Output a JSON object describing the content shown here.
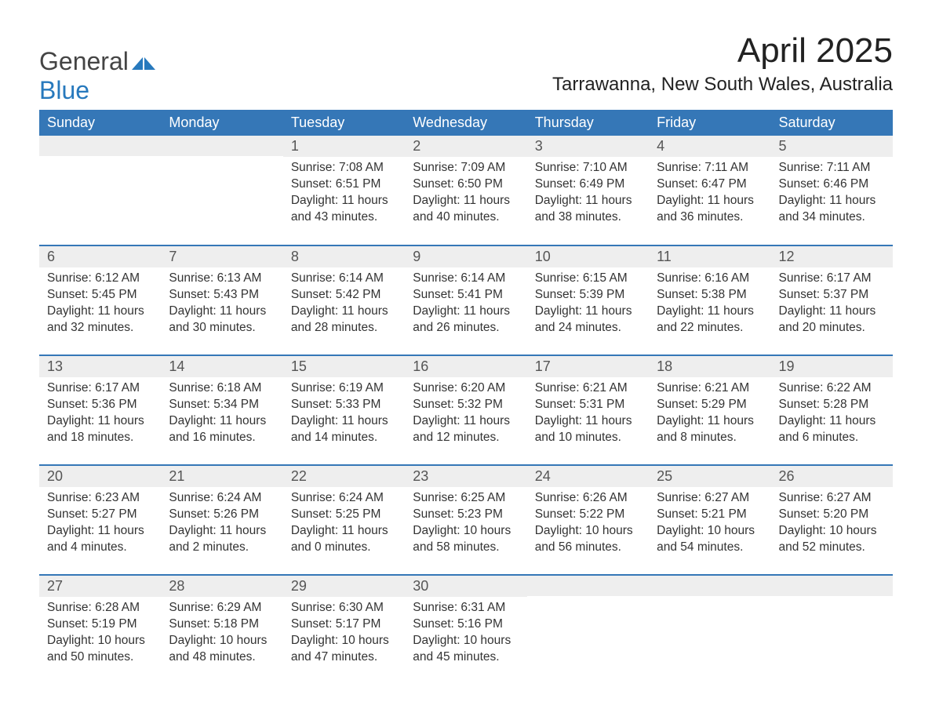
{
  "logo": {
    "text_general": "General",
    "text_blue": "Blue"
  },
  "title": "April 2025",
  "location": "Tarrawanna, New South Wales, Australia",
  "colors": {
    "header_bg": "#3577b7",
    "header_text": "#ffffff",
    "daynum_bg": "#eeeeee",
    "row_border": "#3577b7",
    "body_text": "#333333",
    "logo_blue": "#2779bd"
  },
  "fonts": {
    "title_size_pt": 33,
    "location_size_pt": 18,
    "header_size_pt": 14,
    "daynum_size_pt": 14,
    "body_size_pt": 12
  },
  "day_headers": [
    "Sunday",
    "Monday",
    "Tuesday",
    "Wednesday",
    "Thursday",
    "Friday",
    "Saturday"
  ],
  "weeks": [
    [
      null,
      null,
      {
        "n": "1",
        "sunrise": "Sunrise: 7:08 AM",
        "sunset": "Sunset: 6:51 PM",
        "daylight": "Daylight: 11 hours and 43 minutes."
      },
      {
        "n": "2",
        "sunrise": "Sunrise: 7:09 AM",
        "sunset": "Sunset: 6:50 PM",
        "daylight": "Daylight: 11 hours and 40 minutes."
      },
      {
        "n": "3",
        "sunrise": "Sunrise: 7:10 AM",
        "sunset": "Sunset: 6:49 PM",
        "daylight": "Daylight: 11 hours and 38 minutes."
      },
      {
        "n": "4",
        "sunrise": "Sunrise: 7:11 AM",
        "sunset": "Sunset: 6:47 PM",
        "daylight": "Daylight: 11 hours and 36 minutes."
      },
      {
        "n": "5",
        "sunrise": "Sunrise: 7:11 AM",
        "sunset": "Sunset: 6:46 PM",
        "daylight": "Daylight: 11 hours and 34 minutes."
      }
    ],
    [
      {
        "n": "6",
        "sunrise": "Sunrise: 6:12 AM",
        "sunset": "Sunset: 5:45 PM",
        "daylight": "Daylight: 11 hours and 32 minutes."
      },
      {
        "n": "7",
        "sunrise": "Sunrise: 6:13 AM",
        "sunset": "Sunset: 5:43 PM",
        "daylight": "Daylight: 11 hours and 30 minutes."
      },
      {
        "n": "8",
        "sunrise": "Sunrise: 6:14 AM",
        "sunset": "Sunset: 5:42 PM",
        "daylight": "Daylight: 11 hours and 28 minutes."
      },
      {
        "n": "9",
        "sunrise": "Sunrise: 6:14 AM",
        "sunset": "Sunset: 5:41 PM",
        "daylight": "Daylight: 11 hours and 26 minutes."
      },
      {
        "n": "10",
        "sunrise": "Sunrise: 6:15 AM",
        "sunset": "Sunset: 5:39 PM",
        "daylight": "Daylight: 11 hours and 24 minutes."
      },
      {
        "n": "11",
        "sunrise": "Sunrise: 6:16 AM",
        "sunset": "Sunset: 5:38 PM",
        "daylight": "Daylight: 11 hours and 22 minutes."
      },
      {
        "n": "12",
        "sunrise": "Sunrise: 6:17 AM",
        "sunset": "Sunset: 5:37 PM",
        "daylight": "Daylight: 11 hours and 20 minutes."
      }
    ],
    [
      {
        "n": "13",
        "sunrise": "Sunrise: 6:17 AM",
        "sunset": "Sunset: 5:36 PM",
        "daylight": "Daylight: 11 hours and 18 minutes."
      },
      {
        "n": "14",
        "sunrise": "Sunrise: 6:18 AM",
        "sunset": "Sunset: 5:34 PM",
        "daylight": "Daylight: 11 hours and 16 minutes."
      },
      {
        "n": "15",
        "sunrise": "Sunrise: 6:19 AM",
        "sunset": "Sunset: 5:33 PM",
        "daylight": "Daylight: 11 hours and 14 minutes."
      },
      {
        "n": "16",
        "sunrise": "Sunrise: 6:20 AM",
        "sunset": "Sunset: 5:32 PM",
        "daylight": "Daylight: 11 hours and 12 minutes."
      },
      {
        "n": "17",
        "sunrise": "Sunrise: 6:21 AM",
        "sunset": "Sunset: 5:31 PM",
        "daylight": "Daylight: 11 hours and 10 minutes."
      },
      {
        "n": "18",
        "sunrise": "Sunrise: 6:21 AM",
        "sunset": "Sunset: 5:29 PM",
        "daylight": "Daylight: 11 hours and 8 minutes."
      },
      {
        "n": "19",
        "sunrise": "Sunrise: 6:22 AM",
        "sunset": "Sunset: 5:28 PM",
        "daylight": "Daylight: 11 hours and 6 minutes."
      }
    ],
    [
      {
        "n": "20",
        "sunrise": "Sunrise: 6:23 AM",
        "sunset": "Sunset: 5:27 PM",
        "daylight": "Daylight: 11 hours and 4 minutes."
      },
      {
        "n": "21",
        "sunrise": "Sunrise: 6:24 AM",
        "sunset": "Sunset: 5:26 PM",
        "daylight": "Daylight: 11 hours and 2 minutes."
      },
      {
        "n": "22",
        "sunrise": "Sunrise: 6:24 AM",
        "sunset": "Sunset: 5:25 PM",
        "daylight": "Daylight: 11 hours and 0 minutes."
      },
      {
        "n": "23",
        "sunrise": "Sunrise: 6:25 AM",
        "sunset": "Sunset: 5:23 PM",
        "daylight": "Daylight: 10 hours and 58 minutes."
      },
      {
        "n": "24",
        "sunrise": "Sunrise: 6:26 AM",
        "sunset": "Sunset: 5:22 PM",
        "daylight": "Daylight: 10 hours and 56 minutes."
      },
      {
        "n": "25",
        "sunrise": "Sunrise: 6:27 AM",
        "sunset": "Sunset: 5:21 PM",
        "daylight": "Daylight: 10 hours and 54 minutes."
      },
      {
        "n": "26",
        "sunrise": "Sunrise: 6:27 AM",
        "sunset": "Sunset: 5:20 PM",
        "daylight": "Daylight: 10 hours and 52 minutes."
      }
    ],
    [
      {
        "n": "27",
        "sunrise": "Sunrise: 6:28 AM",
        "sunset": "Sunset: 5:19 PM",
        "daylight": "Daylight: 10 hours and 50 minutes."
      },
      {
        "n": "28",
        "sunrise": "Sunrise: 6:29 AM",
        "sunset": "Sunset: 5:18 PM",
        "daylight": "Daylight: 10 hours and 48 minutes."
      },
      {
        "n": "29",
        "sunrise": "Sunrise: 6:30 AM",
        "sunset": "Sunset: 5:17 PM",
        "daylight": "Daylight: 10 hours and 47 minutes."
      },
      {
        "n": "30",
        "sunrise": "Sunrise: 6:31 AM",
        "sunset": "Sunset: 5:16 PM",
        "daylight": "Daylight: 10 hours and 45 minutes."
      },
      null,
      null,
      null
    ]
  ]
}
